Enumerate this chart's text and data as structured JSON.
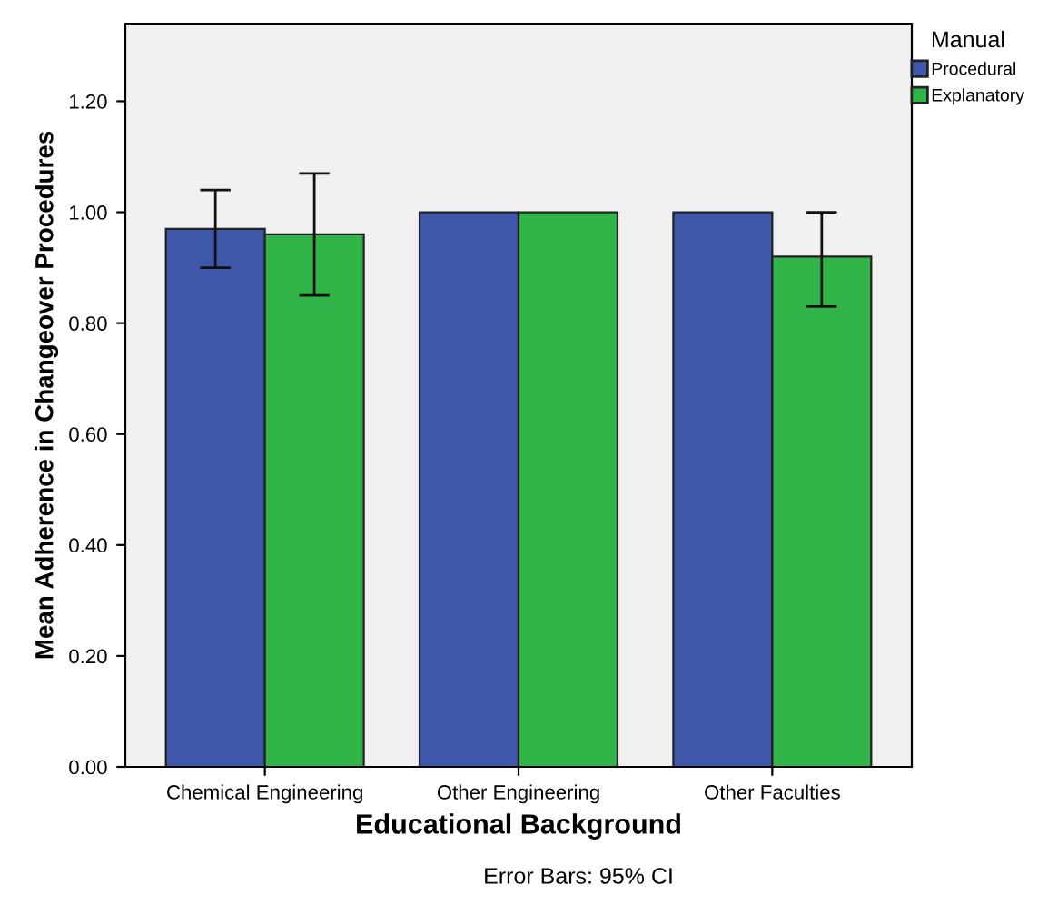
{
  "chart_data": {
    "type": "bar",
    "xlabel": "Educational Background",
    "ylabel": "Mean Adherence in Changeover Procedures",
    "legend_title": "Manual",
    "categories": [
      "Chemical Engineering",
      "Other Engineering",
      "Other Faculties"
    ],
    "series": [
      {
        "name": "Procedural",
        "color": "#3f57ab",
        "values": [
          0.97,
          1.0,
          1.0
        ],
        "errors": [
          [
            0.9,
            1.04
          ],
          null,
          null
        ]
      },
      {
        "name": "Explanatory",
        "color": "#32b548",
        "values": [
          0.96,
          1.0,
          0.92
        ],
        "errors": [
          [
            0.85,
            1.07
          ],
          null,
          [
            0.83,
            1.0
          ]
        ]
      }
    ],
    "ylim": [
      0,
      1.34
    ],
    "yticks": [
      {
        "value": 0,
        "label": "0.00"
      },
      {
        "value": 0.2,
        "label": "0.20"
      },
      {
        "value": 0.4,
        "label": "0.40"
      },
      {
        "value": 0.6,
        "label": "0.60"
      },
      {
        "value": 0.8,
        "label": "0.80"
      },
      {
        "value": 1.0,
        "label": "1.00"
      },
      {
        "value": 1.2,
        "label": "1.20"
      }
    ],
    "grid": false,
    "legend": "top right",
    "annotations": [
      "Error Bars: 95% CI"
    ]
  }
}
